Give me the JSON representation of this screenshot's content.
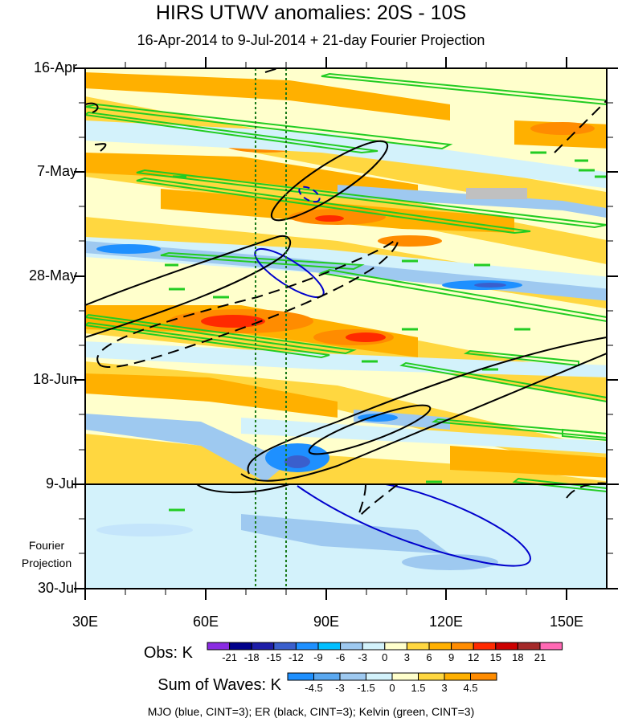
{
  "chart_data": {
    "type": "heatmap",
    "title": "HIRS UTWV anomalies: 20S - 10S",
    "subtitle": "16-Apr-2014 to 9-Jul-2014 + 21-day Fourier Projection",
    "x_axis": {
      "ticks": [
        "30E",
        "60E",
        "90E",
        "120E",
        "150E"
      ],
      "tick_values": [
        30,
        60,
        90,
        120,
        150
      ],
      "range": [
        30,
        160
      ]
    },
    "y_axis": {
      "ticks": [
        "16-Apr",
        "7-May",
        "28-May",
        "18-Jun",
        "9-Jul",
        "30-Jul"
      ],
      "range_days": [
        0,
        105
      ]
    },
    "projection_start": "9-Jul",
    "projection_label_line1": "Fourier",
    "projection_label_line2": "Projection",
    "reference_lines_longitude": [
      72,
      80
    ],
    "obs_colorbar": {
      "label": "Obs: K",
      "ticks": [
        "-21",
        "-18",
        "-15",
        "-12",
        "-9",
        "-6",
        "-3",
        "0",
        "3",
        "6",
        "9",
        "12",
        "15",
        "18",
        "21"
      ],
      "colors": [
        "#8a2be2",
        "#00008b",
        "#1e1ea8",
        "#3a5fcd",
        "#1e90ff",
        "#00bfff",
        "#9ec9f0",
        "#d3f2fb",
        "#ffffcc",
        "#ffd740",
        "#ffb000",
        "#ff8c00",
        "#ff2a00",
        "#cc0000",
        "#a52a2a",
        "#ff69b4"
      ]
    },
    "waves_colorbar": {
      "label": "Sum of Waves: K",
      "ticks": [
        "-4.5",
        "-3",
        "-1.5",
        "0",
        "1.5",
        "3",
        "4.5"
      ],
      "colors": [
        "#1e90ff",
        "#5aa8f0",
        "#9ec9f0",
        "#d3f2fb",
        "#ffffcc",
        "#ffd740",
        "#ffb000",
        "#ff8c00"
      ]
    },
    "footer": "MJO (blue, CINT=3); ER (black, CINT=3); Kelvin (green, CINT=3)",
    "colors": {
      "mjo": "#0000cc",
      "er": "#000000",
      "kelvin": "#22cc22"
    }
  }
}
